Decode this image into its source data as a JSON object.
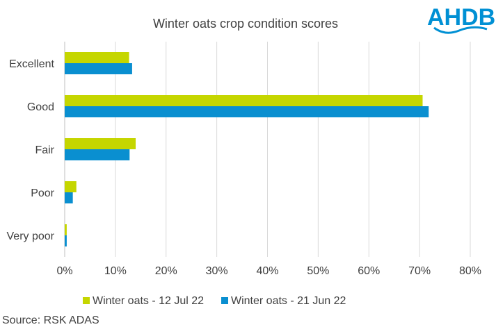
{
  "brand": {
    "logo_text": "AHDB",
    "logo_color": "#0090d4"
  },
  "chart_data": {
    "type": "bar",
    "orientation": "horizontal",
    "title": "Winter oats crop condition scores",
    "categories": [
      "Excellent",
      "Good",
      "Fair",
      "Poor",
      "Very poor"
    ],
    "series": [
      {
        "name": "Winter oats - 12 Jul 22",
        "color": "#c5d600",
        "values": [
          12.7,
          70.6,
          14.0,
          2.3,
          0.4
        ]
      },
      {
        "name": "Winter oats - 21 Jun 22",
        "color": "#0a8fd0",
        "values": [
          13.3,
          71.8,
          12.8,
          1.6,
          0.4
        ]
      }
    ],
    "xlim": [
      0,
      80
    ],
    "xticks": [
      0,
      10,
      20,
      30,
      40,
      50,
      60,
      70,
      80
    ],
    "tick_suffix": "%",
    "grid": true,
    "legend_position": "bottom"
  },
  "source": "Source: RSK ADAS"
}
